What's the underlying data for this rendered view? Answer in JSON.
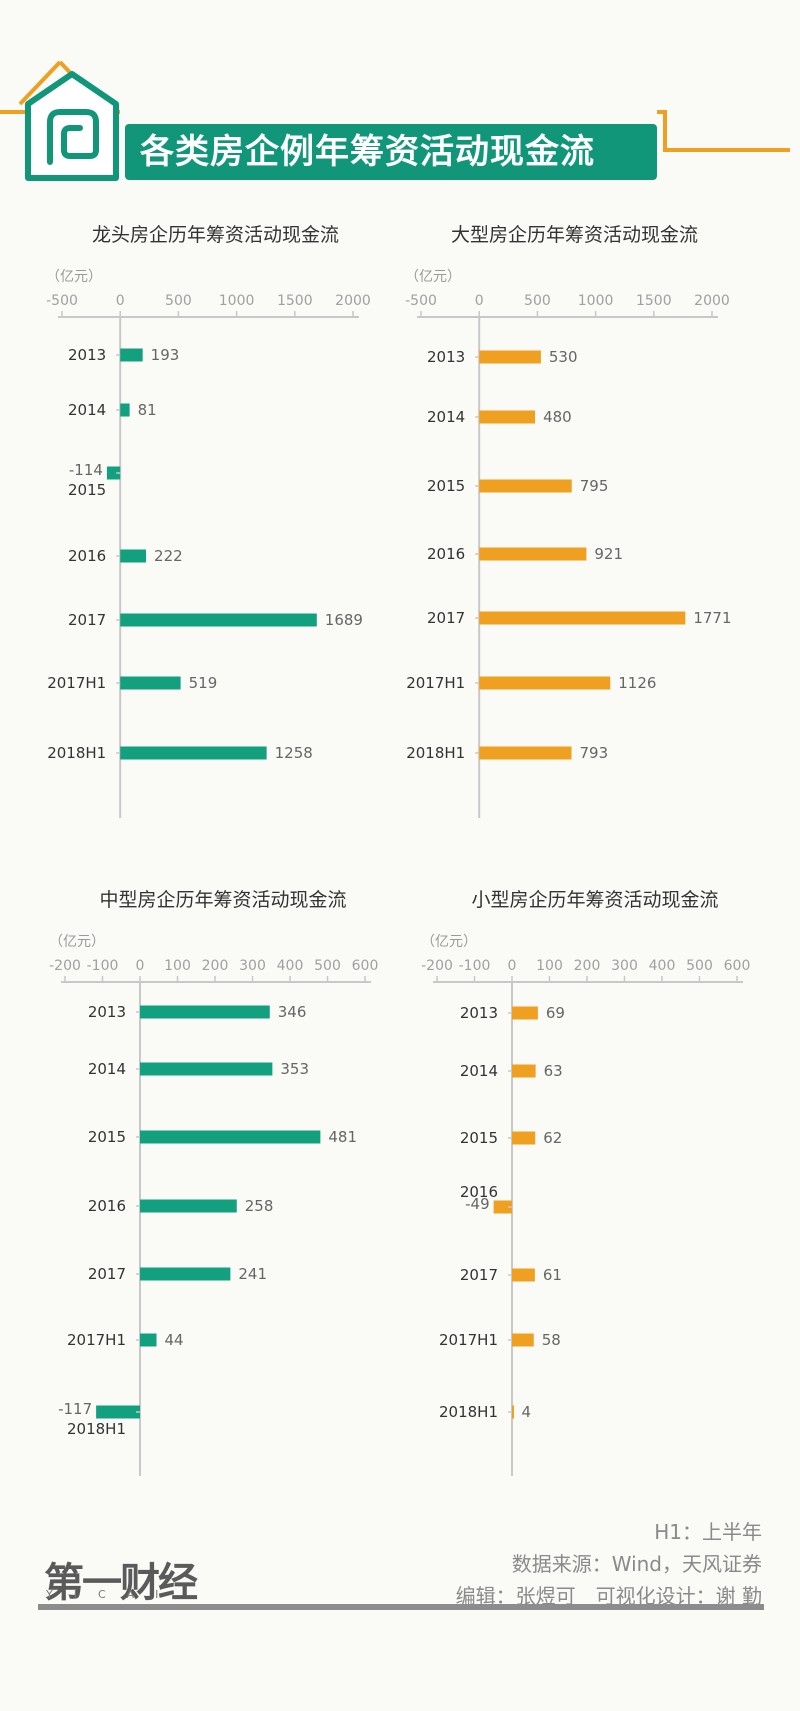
{
  "page": {
    "title": "各类房企例年筹资活动现金流",
    "footer": {
      "note": "H1：上半年",
      "source": "数据来源：Wind，天风证券",
      "credits": "编辑：张煜可　可视化设计：谢 勤"
    },
    "logo": {
      "text": "第一财经",
      "sub": "YICAI"
    }
  },
  "colors": {
    "green": "#12a07f",
    "orange": "#f0a021",
    "axis": "#c8c8c8",
    "label": "#333333",
    "value": "#666666",
    "brand": "#12967a",
    "house_orange": "#f0a021"
  },
  "chart_data": [
    {
      "type": "bar",
      "orientation": "horizontal",
      "title": "龙头房企历年筹资活动现金流",
      "unit": "（亿元）",
      "categories": [
        "2013",
        "2014",
        "2015",
        "2016",
        "2017",
        "2017H1",
        "2018H1"
      ],
      "values": [
        193,
        81,
        -114,
        222,
        1689,
        519,
        1258
      ],
      "xlim": [
        -500,
        2000
      ],
      "xticks": [
        "-500",
        "0",
        "500",
        "1000",
        "1500",
        "2000"
      ],
      "color": "green"
    },
    {
      "type": "bar",
      "orientation": "horizontal",
      "title": "大型房企历年筹资活动现金流",
      "unit": "（亿元）",
      "categories": [
        "2013",
        "2014",
        "2015",
        "2016",
        "2017",
        "2017H1",
        "2018H1"
      ],
      "values": [
        530,
        480,
        795,
        921,
        1771,
        1126,
        793
      ],
      "xlim": [
        -500,
        2000
      ],
      "xticks": [
        "-500",
        "0",
        "500",
        "1000",
        "1500",
        "2000"
      ],
      "color": "orange"
    },
    {
      "type": "bar",
      "orientation": "horizontal",
      "title": "中型房企历年筹资活动现金流",
      "unit": "（亿元）",
      "categories": [
        "2013",
        "2014",
        "2015",
        "2016",
        "2017",
        "2017H1",
        "2018H1"
      ],
      "values": [
        346,
        353,
        481,
        258,
        241,
        44,
        -117
      ],
      "xlim": [
        -200,
        600
      ],
      "xticks": [
        "-200",
        "-100",
        "0",
        "100",
        "200",
        "300",
        "400",
        "500",
        "600"
      ],
      "color": "green"
    },
    {
      "type": "bar",
      "orientation": "horizontal",
      "title": "小型房企历年筹资活动现金流",
      "unit": "（亿元）",
      "categories": [
        "2013",
        "2014",
        "2015",
        "2016",
        "2017",
        "2017H1",
        "2018H1"
      ],
      "values": [
        69,
        63,
        62,
        -49,
        61,
        58,
        4
      ],
      "xlim": [
        -200,
        600
      ],
      "xticks": [
        "-200",
        "-100",
        "0",
        "100",
        "200",
        "300",
        "400",
        "500",
        "600"
      ],
      "color": "orange"
    }
  ]
}
